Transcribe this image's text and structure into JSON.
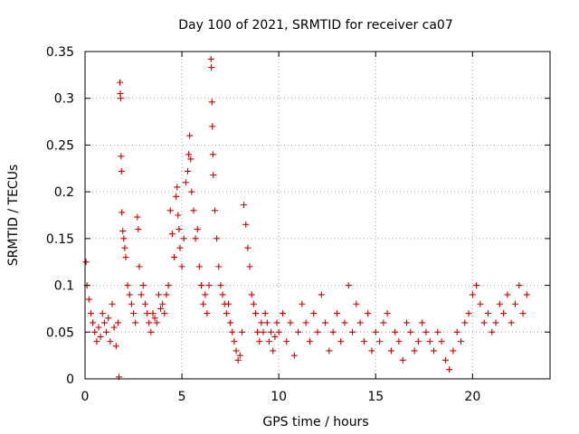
{
  "chart_data": {
    "type": "scatter",
    "title": "Day 100 of 2021, SRMTID for receiver ca07",
    "xlabel": "GPS time / hours",
    "ylabel": "SRMTID / TECUs",
    "xlim": [
      0,
      24
    ],
    "ylim": [
      0,
      0.35
    ],
    "xticks": [
      0,
      5,
      10,
      15,
      20
    ],
    "xtick_labels": [
      "0",
      "5",
      "10",
      "15",
      "20"
    ],
    "yticks": [
      0,
      0.05,
      0.1,
      0.15,
      0.2,
      0.25,
      0.3,
      0.35
    ],
    "ytick_labels": [
      "0",
      "0.05",
      "0.1",
      "0.15",
      "0.2",
      "0.25",
      "0.3",
      "0.35"
    ],
    "grid": true,
    "marker": "plus",
    "series": [
      {
        "name": "SRMTID",
        "color": "#cc0000",
        "points": [
          [
            0.05,
            0.125
          ],
          [
            0.1,
            0.1
          ],
          [
            0.2,
            0.085
          ],
          [
            0.3,
            0.07
          ],
          [
            0.4,
            0.06
          ],
          [
            0.5,
            0.05
          ],
          [
            0.6,
            0.04
          ],
          [
            0.7,
            0.055
          ],
          [
            0.8,
            0.045
          ],
          [
            0.9,
            0.07
          ],
          [
            1.0,
            0.06
          ],
          [
            1.1,
            0.05
          ],
          [
            1.2,
            0.065
          ],
          [
            1.3,
            0.04
          ],
          [
            1.4,
            0.08
          ],
          [
            1.5,
            0.055
          ],
          [
            1.6,
            0.035
          ],
          [
            1.7,
            0.06
          ],
          [
            1.75,
            0.002
          ],
          [
            1.8,
            0.317
          ],
          [
            1.82,
            0.305
          ],
          [
            1.84,
            0.3
          ],
          [
            1.86,
            0.238
          ],
          [
            1.88,
            0.222
          ],
          [
            1.9,
            0.178
          ],
          [
            1.95,
            0.158
          ],
          [
            2.0,
            0.15
          ],
          [
            2.05,
            0.14
          ],
          [
            2.1,
            0.13
          ],
          [
            2.2,
            0.1
          ],
          [
            2.3,
            0.09
          ],
          [
            2.4,
            0.08
          ],
          [
            2.5,
            0.07
          ],
          [
            2.6,
            0.06
          ],
          [
            2.7,
            0.173
          ],
          [
            2.75,
            0.16
          ],
          [
            2.8,
            0.12
          ],
          [
            2.9,
            0.09
          ],
          [
            3.0,
            0.1
          ],
          [
            3.1,
            0.08
          ],
          [
            3.2,
            0.07
          ],
          [
            3.3,
            0.06
          ],
          [
            3.4,
            0.05
          ],
          [
            3.5,
            0.07
          ],
          [
            3.6,
            0.065
          ],
          [
            3.7,
            0.06
          ],
          [
            3.8,
            0.09
          ],
          [
            3.9,
            0.075
          ],
          [
            4.0,
            0.08
          ],
          [
            4.1,
            0.07
          ],
          [
            4.2,
            0.09
          ],
          [
            4.3,
            0.1
          ],
          [
            4.4,
            0.18
          ],
          [
            4.5,
            0.155
          ],
          [
            4.6,
            0.13
          ],
          [
            4.7,
            0.195
          ],
          [
            4.75,
            0.205
          ],
          [
            4.8,
            0.175
          ],
          [
            4.85,
            0.16
          ],
          [
            4.9,
            0.14
          ],
          [
            5.0,
            0.12
          ],
          [
            5.1,
            0.15
          ],
          [
            5.2,
            0.21
          ],
          [
            5.3,
            0.222
          ],
          [
            5.35,
            0.24
          ],
          [
            5.4,
            0.26
          ],
          [
            5.45,
            0.235
          ],
          [
            5.5,
            0.2
          ],
          [
            5.6,
            0.18
          ],
          [
            5.7,
            0.15
          ],
          [
            5.8,
            0.16
          ],
          [
            5.9,
            0.12
          ],
          [
            6.0,
            0.1
          ],
          [
            6.1,
            0.08
          ],
          [
            6.2,
            0.09
          ],
          [
            6.3,
            0.07
          ],
          [
            6.4,
            0.1
          ],
          [
            6.5,
            0.342
          ],
          [
            6.52,
            0.333
          ],
          [
            6.55,
            0.296
          ],
          [
            6.57,
            0.27
          ],
          [
            6.6,
            0.24
          ],
          [
            6.62,
            0.218
          ],
          [
            6.7,
            0.18
          ],
          [
            6.8,
            0.15
          ],
          [
            6.9,
            0.12
          ],
          [
            7.0,
            0.1
          ],
          [
            7.1,
            0.09
          ],
          [
            7.2,
            0.08
          ],
          [
            7.3,
            0.07
          ],
          [
            7.4,
            0.08
          ],
          [
            7.5,
            0.06
          ],
          [
            7.6,
            0.05
          ],
          [
            7.7,
            0.04
          ],
          [
            7.8,
            0.03
          ],
          [
            7.9,
            0.02
          ],
          [
            8.0,
            0.025
          ],
          [
            8.1,
            0.05
          ],
          [
            8.2,
            0.186
          ],
          [
            8.3,
            0.165
          ],
          [
            8.4,
            0.14
          ],
          [
            8.5,
            0.12
          ],
          [
            8.6,
            0.09
          ],
          [
            8.7,
            0.08
          ],
          [
            8.8,
            0.07
          ],
          [
            8.9,
            0.05
          ],
          [
            9.0,
            0.04
          ],
          [
            9.1,
            0.06
          ],
          [
            9.2,
            0.05
          ],
          [
            9.3,
            0.07
          ],
          [
            9.4,
            0.06
          ],
          [
            9.5,
            0.04
          ],
          [
            9.6,
            0.05
          ],
          [
            9.7,
            0.03
          ],
          [
            9.8,
            0.045
          ],
          [
            9.9,
            0.06
          ],
          [
            10.0,
            0.05
          ],
          [
            10.2,
            0.07
          ],
          [
            10.4,
            0.04
          ],
          [
            10.6,
            0.06
          ],
          [
            10.8,
            0.025
          ],
          [
            11.0,
            0.05
          ],
          [
            11.2,
            0.08
          ],
          [
            11.4,
            0.06
          ],
          [
            11.6,
            0.04
          ],
          [
            11.8,
            0.07
          ],
          [
            12.0,
            0.05
          ],
          [
            12.2,
            0.09
          ],
          [
            12.4,
            0.06
          ],
          [
            12.6,
            0.03
          ],
          [
            12.8,
            0.05
          ],
          [
            13.0,
            0.07
          ],
          [
            13.2,
            0.04
          ],
          [
            13.4,
            0.06
          ],
          [
            13.6,
            0.1
          ],
          [
            13.8,
            0.05
          ],
          [
            14.0,
            0.08
          ],
          [
            14.2,
            0.06
          ],
          [
            14.4,
            0.04
          ],
          [
            14.6,
            0.07
          ],
          [
            14.8,
            0.03
          ],
          [
            15.0,
            0.05
          ],
          [
            15.2,
            0.04
          ],
          [
            15.4,
            0.06
          ],
          [
            15.6,
            0.07
          ],
          [
            15.8,
            0.03
          ],
          [
            16.0,
            0.05
          ],
          [
            16.2,
            0.04
          ],
          [
            16.4,
            0.02
          ],
          [
            16.6,
            0.06
          ],
          [
            16.8,
            0.05
          ],
          [
            17.0,
            0.03
          ],
          [
            17.2,
            0.04
          ],
          [
            17.4,
            0.06
          ],
          [
            17.6,
            0.05
          ],
          [
            17.8,
            0.04
          ],
          [
            18.0,
            0.03
          ],
          [
            18.2,
            0.05
          ],
          [
            18.4,
            0.04
          ],
          [
            18.6,
            0.02
          ],
          [
            18.8,
            0.01
          ],
          [
            19.0,
            0.03
          ],
          [
            19.2,
            0.05
          ],
          [
            19.4,
            0.04
          ],
          [
            19.6,
            0.06
          ],
          [
            19.8,
            0.07
          ],
          [
            20.0,
            0.09
          ],
          [
            20.2,
            0.1
          ],
          [
            20.4,
            0.08
          ],
          [
            20.6,
            0.06
          ],
          [
            20.8,
            0.07
          ],
          [
            21.0,
            0.05
          ],
          [
            21.2,
            0.06
          ],
          [
            21.4,
            0.08
          ],
          [
            21.6,
            0.07
          ],
          [
            21.8,
            0.09
          ],
          [
            22.0,
            0.06
          ],
          [
            22.2,
            0.08
          ],
          [
            22.4,
            0.1
          ],
          [
            22.6,
            0.07
          ],
          [
            22.8,
            0.09
          ]
        ]
      }
    ]
  }
}
